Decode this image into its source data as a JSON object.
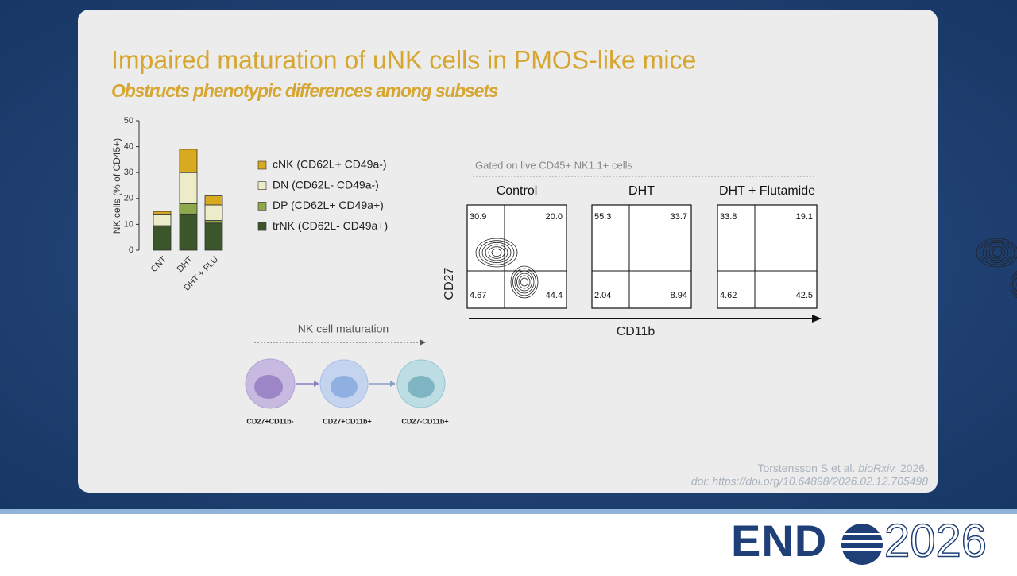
{
  "header": {
    "title": "Impaired maturation of uNK cells in PMOS-like mice",
    "subtitle": "Obstructs phenotypic differences among subsets"
  },
  "chart_data": {
    "type": "bar",
    "stacked": true,
    "y_label": "NK cells (% of CD45+)",
    "categories": [
      "CNT",
      "DHT",
      "DHT + FLU"
    ],
    "series": [
      {
        "name": "trNK (CD62L- CD49a+)",
        "color": "#3b5628",
        "values": [
          9,
          14,
          10.5
        ]
      },
      {
        "name": "DP (CD62L+ CD49a+)",
        "color": "#8fa84c",
        "values": [
          0.5,
          4,
          1
        ]
      },
      {
        "name": "DN (CD62L- CD49a-)",
        "color": "#ececc8",
        "values": [
          4.5,
          12,
          6
        ]
      },
      {
        "name": "cNK (CD62L+ CD49a-)",
        "color": "#d9a91f",
        "values": [
          1,
          9,
          3.5
        ]
      }
    ],
    "ylim": [
      0,
      50
    ],
    "yticks": [
      0,
      10,
      20,
      30,
      40,
      50
    ]
  },
  "flow": {
    "gate_note": "Gated on live CD45+ NK1.1+ cells",
    "y_label": "CD27",
    "x_label": "CD11b",
    "panels": [
      {
        "title": "Control",
        "quadrants": [
          "30.9",
          "20.0",
          "4.67",
          "44.4"
        ]
      },
      {
        "title": "DHT",
        "quadrants": [
          "55.3",
          "33.7",
          "2.04",
          "8.94"
        ]
      },
      {
        "title": "DHT + Flutamide",
        "quadrants": [
          "33.8",
          "19.1",
          "4.62",
          "42.5"
        ]
      }
    ]
  },
  "maturation": {
    "title": "NK cell maturation",
    "stages": [
      "CD27+CD11b-",
      "CD27+CD11b+",
      "CD27-CD11b+"
    ]
  },
  "citation": {
    "authors": "Torstensson S et al.",
    "journal": "bioRxiv.",
    "year": "2026.",
    "doi": "doi: https://doi.org/10.64898/2026.02.12.705498"
  },
  "logo": {
    "left": "END",
    "right": "2026"
  }
}
